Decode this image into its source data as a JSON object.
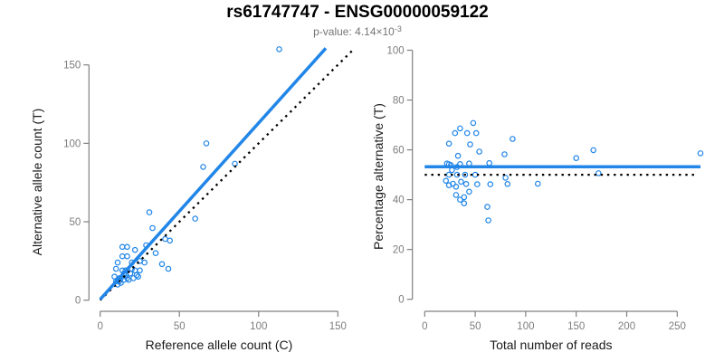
{
  "header": {
    "title": "rs61747747 - ENSG00000059122",
    "p_label": "p-value: ",
    "p_mantissa": "4.14",
    "p_times": "×10",
    "p_exponent": "-3"
  },
  "colors": {
    "accent_blue": "#2186E8",
    "identity_black": "#000000",
    "axis_gray": "#808080",
    "tick_label_gray": "#7D7D7D",
    "axis_label_black": "#1A1A1A",
    "subtitle_gray": "#757575"
  },
  "chart_data": [
    {
      "type": "scatter",
      "panel": "left",
      "title": "rs61747747 - ENSG00000059122",
      "subtitle": "p-value: 4.14×10^-3",
      "xlabel": "Reference allele count (C)",
      "ylabel": "Alternative allele count (T)",
      "xlim": [
        0,
        157
      ],
      "ylim": [
        0,
        161
      ],
      "xticks": [
        0,
        50,
        100,
        150
      ],
      "yticks": [
        0,
        50,
        100,
        150
      ],
      "grid": false,
      "legend": "none",
      "points": [
        [
          113,
          160
        ],
        [
          67,
          100
        ],
        [
          65,
          85
        ],
        [
          85,
          87
        ],
        [
          31,
          56
        ],
        [
          60,
          52
        ],
        [
          33,
          46
        ],
        [
          41,
          39
        ],
        [
          44,
          38
        ],
        [
          14,
          34
        ],
        [
          17,
          34
        ],
        [
          22,
          32
        ],
        [
          29,
          35
        ],
        [
          35,
          30
        ],
        [
          14,
          28
        ],
        [
          17,
          28
        ],
        [
          11,
          24
        ],
        [
          20,
          24
        ],
        [
          25,
          25
        ],
        [
          28,
          24
        ],
        [
          39,
          23
        ],
        [
          43,
          20
        ],
        [
          10,
          20
        ],
        [
          14,
          19
        ],
        [
          16,
          19
        ],
        [
          19,
          17
        ],
        [
          23,
          16
        ],
        [
          24,
          15
        ],
        [
          9,
          15
        ],
        [
          12,
          14
        ],
        [
          15,
          13
        ],
        [
          18,
          13
        ],
        [
          13,
          11
        ],
        [
          10,
          12
        ],
        [
          11,
          10
        ],
        [
          13,
          14
        ],
        [
          16,
          16
        ],
        [
          17,
          14
        ],
        [
          20,
          20
        ],
        [
          15,
          17
        ],
        [
          12,
          12
        ],
        [
          22,
          19
        ],
        [
          25,
          19
        ],
        [
          21,
          14
        ],
        [
          11,
          13
        ]
      ],
      "lines": [
        {
          "name": "identity-line",
          "x1": 0,
          "y1": 0,
          "x2": 159.3,
          "y2": 159.3,
          "dash": "dotted",
          "color": "identity_black",
          "width": 2.3
        },
        {
          "name": "regression-line",
          "x1": 0,
          "y1": 0.5,
          "x2": 142.4,
          "y2": 160.6,
          "dash": "solid",
          "color": "accent_blue",
          "width": 3.5
        }
      ]
    },
    {
      "type": "scatter",
      "panel": "right",
      "xlabel": "Total number of reads",
      "ylabel": "Percentage alternative (T)",
      "xlim": [
        0,
        273
      ],
      "ylim": [
        0,
        100
      ],
      "xticks": [
        0,
        50,
        100,
        150,
        200,
        250
      ],
      "yticks": [
        0,
        20,
        40,
        60,
        80,
        100
      ],
      "grid": false,
      "legend": "none",
      "points": [
        [
          273,
          58.6
        ],
        [
          167,
          59.9
        ],
        [
          150,
          56.7
        ],
        [
          172,
          50.6
        ],
        [
          87,
          64.4
        ],
        [
          112,
          46.4
        ],
        [
          79,
          58.2
        ],
        [
          80,
          48.8
        ],
        [
          82,
          46.3
        ],
        [
          48,
          70.8
        ],
        [
          51,
          66.7
        ],
        [
          54,
          59.3
        ],
        [
          64,
          54.7
        ],
        [
          65,
          46.2
        ],
        [
          42,
          66.7
        ],
        [
          45,
          62.2
        ],
        [
          35,
          68.6
        ],
        [
          44,
          54.5
        ],
        [
          50,
          50.0
        ],
        [
          52,
          46.2
        ],
        [
          62,
          37.1
        ],
        [
          63,
          31.7
        ],
        [
          30,
          66.7
        ],
        [
          33,
          57.6
        ],
        [
          35,
          54.3
        ],
        [
          36,
          47.2
        ],
        [
          39,
          41.0
        ],
        [
          39,
          38.5
        ],
        [
          24,
          62.5
        ],
        [
          26,
          53.8
        ],
        [
          28,
          46.4
        ],
        [
          31,
          41.9
        ],
        [
          24,
          45.8
        ],
        [
          22,
          54.5
        ],
        [
          21,
          47.6
        ],
        [
          27,
          51.9
        ],
        [
          32,
          50.0
        ],
        [
          31,
          45.2
        ],
        [
          40,
          50.0
        ],
        [
          32,
          53.1
        ],
        [
          24,
          50.0
        ],
        [
          41,
          46.3
        ],
        [
          44,
          43.2
        ],
        [
          35,
          40.0
        ],
        [
          24,
          54.2
        ]
      ],
      "lines": [
        {
          "name": "reference-50pct-line",
          "x1": 0,
          "y1": 50,
          "x2": 267,
          "y2": 50,
          "dash": "dotted",
          "color": "identity_black",
          "width": 2.3
        },
        {
          "name": "mean-percentage-line",
          "x1": 0,
          "y1": 53.2,
          "x2": 273,
          "y2": 53.2,
          "dash": "solid",
          "color": "accent_blue",
          "width": 3.5
        }
      ]
    }
  ]
}
